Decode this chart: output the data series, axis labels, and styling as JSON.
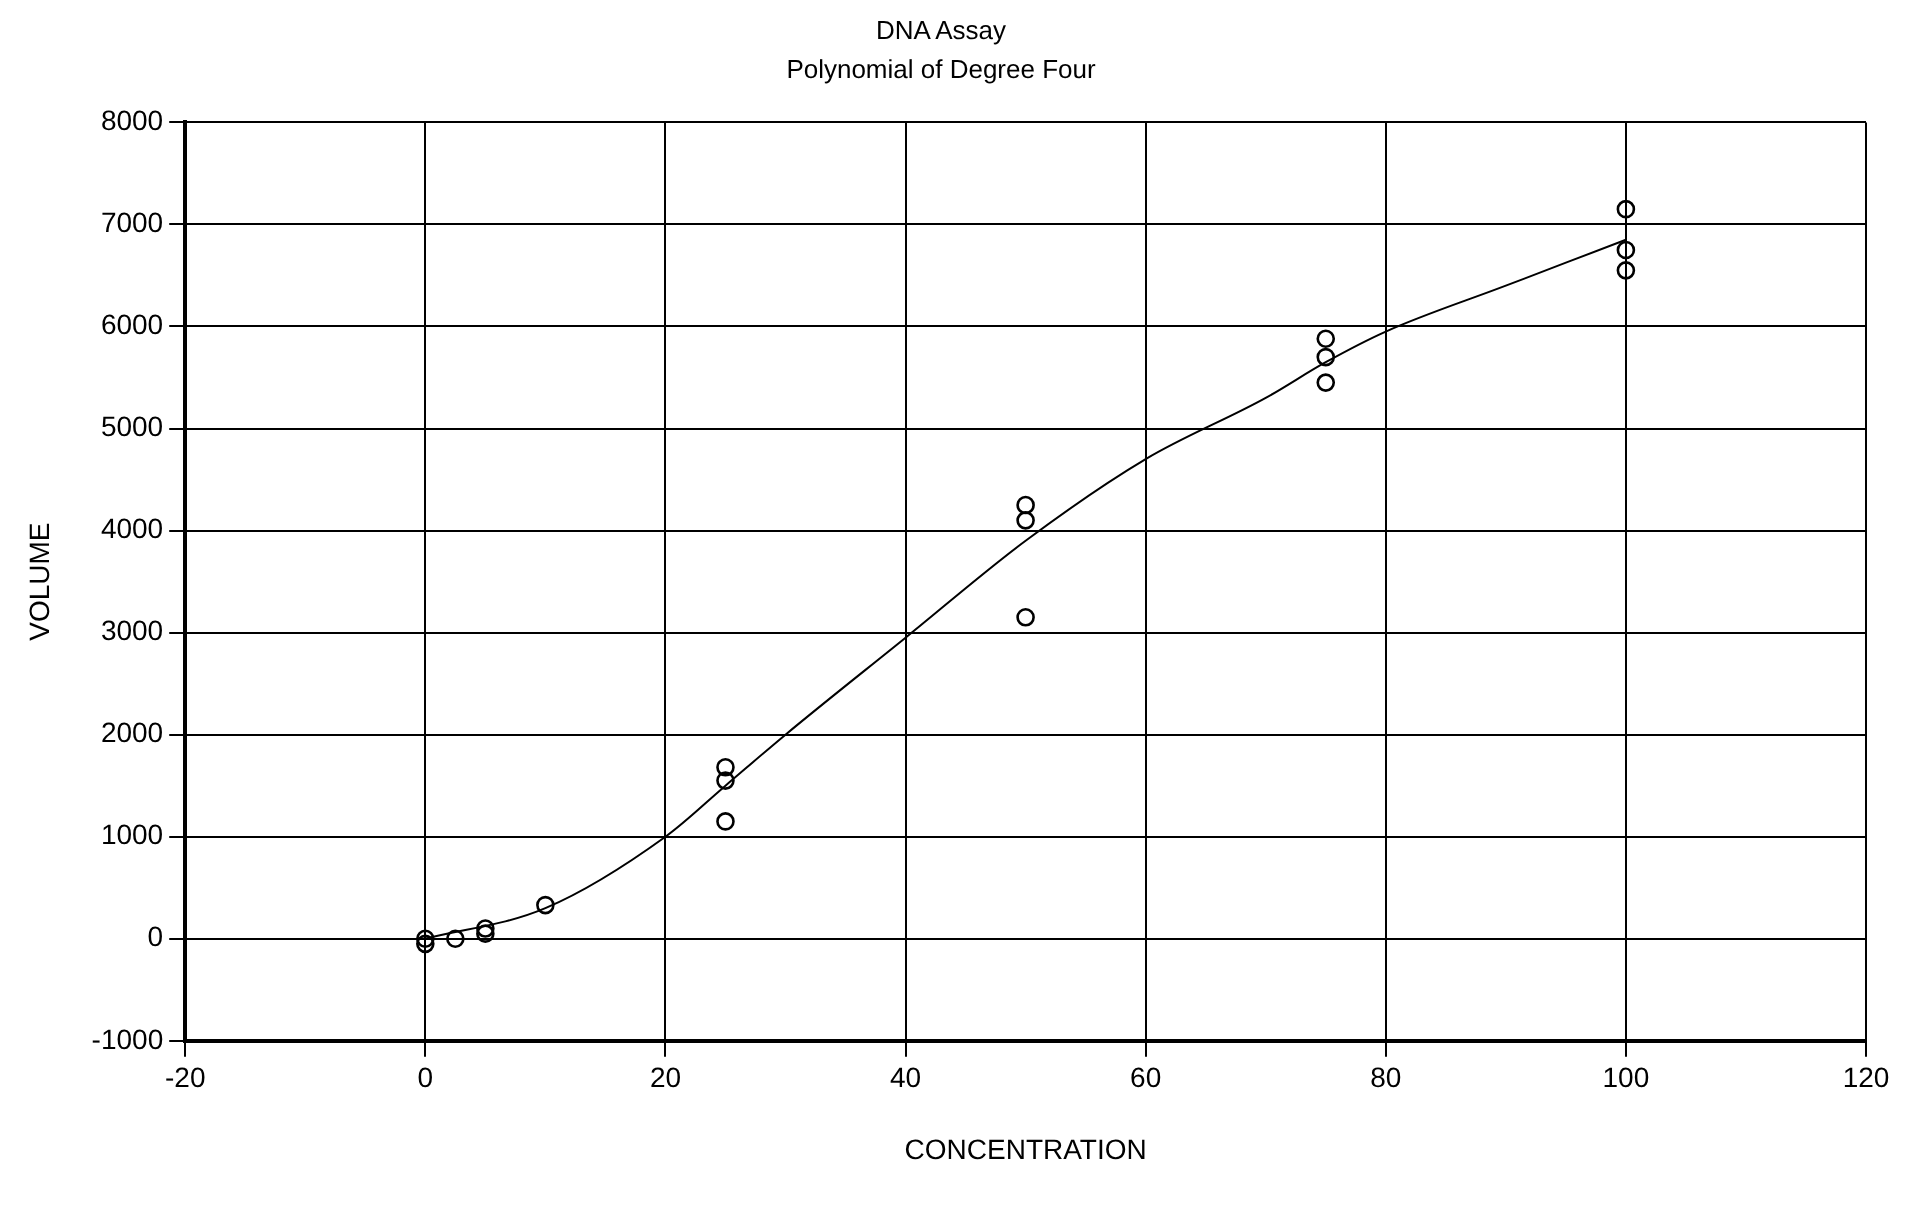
{
  "chart_data": {
    "type": "scatter",
    "title": "DNA Assay",
    "subtitle": "Polynomial of Degree Four",
    "xlabel": "CONCENTRATION",
    "ylabel": "VOLUME",
    "series": [
      {
        "color": "#000000",
        "marker": "circle",
        "x": [
          0,
          0,
          2.5,
          5,
          5,
          10,
          25,
          25,
          25,
          50,
          50,
          50,
          75,
          75,
          75,
          100,
          100,
          100
        ],
        "values": [
          0,
          -50,
          0,
          50,
          100,
          330,
          1150,
          1550,
          1680,
          3150,
          4100,
          4250,
          5450,
          5700,
          5880,
          6550,
          6750,
          7150
        ]
      },
      {
        "type": "line",
        "color": "#000000",
        "x": [
          0,
          10,
          20,
          25,
          30,
          40,
          50,
          60,
          70,
          75,
          80,
          90,
          100
        ],
        "values": [
          0,
          300,
          1000,
          1500,
          2000,
          2950,
          3900,
          4700,
          5300,
          5650,
          5950,
          6400,
          6850
        ]
      }
    ],
    "xlim": [
      -20,
      120
    ],
    "xticks": [
      -20,
      0,
      20,
      40,
      60,
      80,
      100,
      120
    ],
    "ylim": [
      -1000,
      8000
    ],
    "yticks": [
      -1000,
      0,
      1000,
      2000,
      3000,
      4000,
      5000,
      6000,
      7000,
      8000
    ],
    "grid": true,
    "line_style": "solid",
    "legend": false
  }
}
